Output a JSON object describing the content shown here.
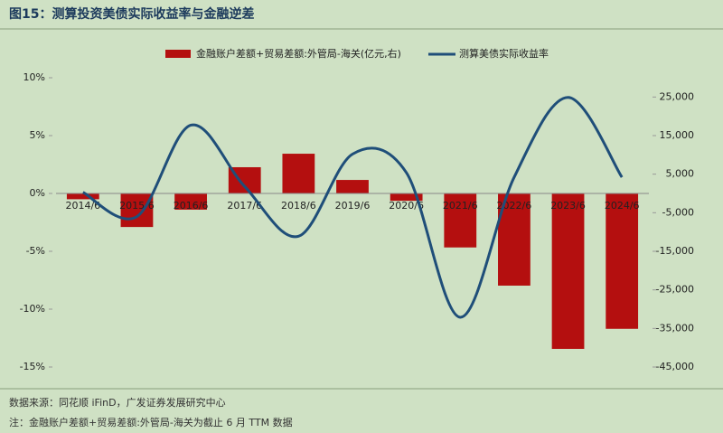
{
  "chart_data": {
    "type": "bar-line",
    "title": "图15：测算投资美债实际收益率与金融逆差",
    "categories": [
      "2014/6",
      "2015/6",
      "2016/6",
      "2017/6",
      "2018/6",
      "2019/6",
      "2020/6",
      "2021/6",
      "2022/6",
      "2023/6",
      "2024/6"
    ],
    "series": [
      {
        "name": "金融账户差额+贸易差额:外管局-海关(亿元,右)",
        "type": "bar",
        "axis": "y2",
        "color": "#b40f0f",
        "values": [
          -1500,
          -8700,
          -4200,
          6800,
          10300,
          3500,
          -1900,
          -14000,
          -23900,
          -40300,
          -35100
        ]
      },
      {
        "name": "测算美债实际收益率",
        "type": "line",
        "color": "#1f4e79",
        "values": [
          0.1,
          -2.0,
          5.9,
          0.6,
          -3.7,
          3.4,
          1.8,
          -10.7,
          1.4,
          8.3,
          1.4
        ]
      }
    ],
    "ylim": [
      -15,
      10
    ],
    "yticks": [
      {
        "value": -15,
        "label": "-15%"
      },
      {
        "value": -10,
        "label": "-10%"
      },
      {
        "value": -5,
        "label": "-5%"
      },
      {
        "value": 0,
        "label": "0%"
      },
      {
        "value": 5,
        "label": "5%"
      },
      {
        "value": 10,
        "label": "10%"
      }
    ],
    "y2lim": [
      -45000,
      30000
    ],
    "y2ticks": [
      {
        "value": -45000,
        "label": "-45,000"
      },
      {
        "value": -35000,
        "label": "-35,000"
      },
      {
        "value": -25000,
        "label": "-25,000"
      },
      {
        "value": -15000,
        "label": "-15,000"
      },
      {
        "value": -5000,
        "label": "-5,000"
      },
      {
        "value": 5000,
        "label": "5,000"
      },
      {
        "value": 15000,
        "label": "15,000"
      },
      {
        "value": 25000,
        "label": "25,000"
      }
    ],
    "source": "数据来源：同花顺 iFinD，广发证券发展研究中心",
    "note": "注：金融账户差额+贸易差额:外管局-海关为截止 6 月 TTM 数据"
  }
}
